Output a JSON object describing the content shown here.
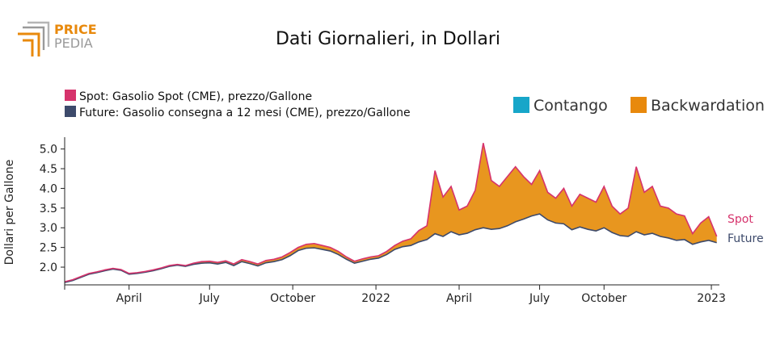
{
  "logo": {
    "line1": "PRICE",
    "line2": "PEDIA"
  },
  "colors": {
    "spot": "#d6336c",
    "future": "#3d4a6b",
    "contango": "#17a6c9",
    "backwardation": "#e8890c",
    "band_fill": "#e8961f",
    "logo_orange": "#e8890c",
    "logo_gray": "#9a9a9a"
  },
  "chart_data": {
    "type": "area",
    "title": "Dati Giornalieri, in Dollari",
    "ylabel": "Dollari per Gallone",
    "xlabel": "",
    "ylim": [
      1.55,
      5.3
    ],
    "xlim": [
      0,
      24.4
    ],
    "yticks": [
      2.0,
      2.5,
      3.0,
      3.5,
      4.0,
      4.5,
      5.0
    ],
    "ytick_labels": [
      "2.0",
      "2.5",
      "3.0",
      "3.5",
      "4.0",
      "4.5",
      "5.0"
    ],
    "xticks": [
      {
        "pos": 0,
        "label": ""
      },
      {
        "pos": 2.4,
        "label": "April"
      },
      {
        "pos": 5.4,
        "label": "July"
      },
      {
        "pos": 8.5,
        "label": "October"
      },
      {
        "pos": 11.6,
        "label": "2022"
      },
      {
        "pos": 14.7,
        "label": "April"
      },
      {
        "pos": 17.7,
        "label": "July"
      },
      {
        "pos": 20.1,
        "label": "October"
      },
      {
        "pos": 24.1,
        "label": "2023"
      }
    ],
    "legend": [
      {
        "name": "Spot",
        "label": "Spot: Gasolio Spot (CME), prezzo/Gallone"
      },
      {
        "name": "Future",
        "label": "Future: Gasolio consegna a 12 mesi (CME), prezzo/Gallone"
      }
    ],
    "area_legend": [
      {
        "name": "contango",
        "label": "Contango"
      },
      {
        "name": "backwardation",
        "label": "Backwardation"
      }
    ],
    "end_labels": {
      "spot": "Spot",
      "future": "Future"
    },
    "series": [
      {
        "name": "Spot",
        "x": [
          0,
          0.3,
          0.6,
          0.9,
          1.2,
          1.5,
          1.8,
          2.1,
          2.4,
          2.7,
          3.0,
          3.3,
          3.6,
          3.9,
          4.2,
          4.5,
          4.8,
          5.1,
          5.4,
          5.7,
          6.0,
          6.3,
          6.6,
          6.9,
          7.2,
          7.5,
          7.8,
          8.1,
          8.4,
          8.7,
          9.0,
          9.3,
          9.6,
          9.9,
          10.2,
          10.5,
          10.8,
          11.1,
          11.4,
          11.7,
          12.0,
          12.3,
          12.6,
          12.9,
          13.2,
          13.5,
          13.8,
          14.1,
          14.4,
          14.7,
          15.0,
          15.3,
          15.6,
          15.9,
          16.2,
          16.5,
          16.8,
          17.1,
          17.4,
          17.7,
          18.0,
          18.3,
          18.6,
          18.9,
          19.2,
          19.5,
          19.8,
          20.1,
          20.4,
          20.7,
          21.0,
          21.3,
          21.6,
          21.9,
          22.2,
          22.5,
          22.8,
          23.1,
          23.4,
          23.7,
          24.0,
          24.3
        ],
        "values": [
          1.63,
          1.68,
          1.76,
          1.84,
          1.88,
          1.93,
          1.97,
          1.94,
          1.84,
          1.86,
          1.89,
          1.93,
          1.98,
          2.04,
          2.07,
          2.04,
          2.1,
          2.14,
          2.15,
          2.12,
          2.16,
          2.08,
          2.19,
          2.14,
          2.08,
          2.17,
          2.2,
          2.26,
          2.37,
          2.5,
          2.58,
          2.6,
          2.55,
          2.5,
          2.4,
          2.26,
          2.15,
          2.21,
          2.26,
          2.29,
          2.4,
          2.55,
          2.66,
          2.72,
          2.93,
          3.05,
          4.45,
          3.78,
          4.05,
          3.45,
          3.55,
          3.95,
          5.15,
          4.2,
          4.05,
          4.3,
          4.55,
          4.3,
          4.1,
          4.45,
          3.9,
          3.75,
          4.0,
          3.55,
          3.85,
          3.75,
          3.65,
          4.05,
          3.55,
          3.35,
          3.5,
          4.55,
          3.9,
          4.05,
          3.55,
          3.5,
          3.35,
          3.3,
          2.85,
          3.12,
          3.28,
          2.78
        ]
      },
      {
        "name": "Future",
        "x": [
          0,
          0.3,
          0.6,
          0.9,
          1.2,
          1.5,
          1.8,
          2.1,
          2.4,
          2.7,
          3.0,
          3.3,
          3.6,
          3.9,
          4.2,
          4.5,
          4.8,
          5.1,
          5.4,
          5.7,
          6.0,
          6.3,
          6.6,
          6.9,
          7.2,
          7.5,
          7.8,
          8.1,
          8.4,
          8.7,
          9.0,
          9.3,
          9.6,
          9.9,
          10.2,
          10.5,
          10.8,
          11.1,
          11.4,
          11.7,
          12.0,
          12.3,
          12.6,
          12.9,
          13.2,
          13.5,
          13.8,
          14.1,
          14.4,
          14.7,
          15.0,
          15.3,
          15.6,
          15.9,
          16.2,
          16.5,
          16.8,
          17.1,
          17.4,
          17.7,
          18.0,
          18.3,
          18.6,
          18.9,
          19.2,
          19.5,
          19.8,
          20.1,
          20.4,
          20.7,
          21.0,
          21.3,
          21.6,
          21.9,
          22.2,
          22.5,
          22.8,
          23.1,
          23.4,
          23.7,
          24.0,
          24.3
        ],
        "values": [
          1.61,
          1.66,
          1.74,
          1.82,
          1.86,
          1.91,
          1.95,
          1.92,
          1.82,
          1.84,
          1.87,
          1.91,
          1.96,
          2.02,
          2.05,
          2.02,
          2.07,
          2.1,
          2.11,
          2.08,
          2.12,
          2.04,
          2.14,
          2.09,
          2.03,
          2.11,
          2.14,
          2.19,
          2.29,
          2.42,
          2.48,
          2.49,
          2.45,
          2.41,
          2.32,
          2.2,
          2.1,
          2.15,
          2.2,
          2.23,
          2.32,
          2.45,
          2.52,
          2.55,
          2.64,
          2.7,
          2.85,
          2.78,
          2.9,
          2.82,
          2.86,
          2.95,
          3.0,
          2.96,
          2.98,
          3.05,
          3.15,
          3.22,
          3.3,
          3.35,
          3.2,
          3.12,
          3.1,
          2.95,
          3.02,
          2.96,
          2.92,
          3.0,
          2.88,
          2.8,
          2.78,
          2.9,
          2.82,
          2.86,
          2.78,
          2.74,
          2.68,
          2.7,
          2.58,
          2.64,
          2.68,
          2.62
        ]
      }
    ]
  }
}
